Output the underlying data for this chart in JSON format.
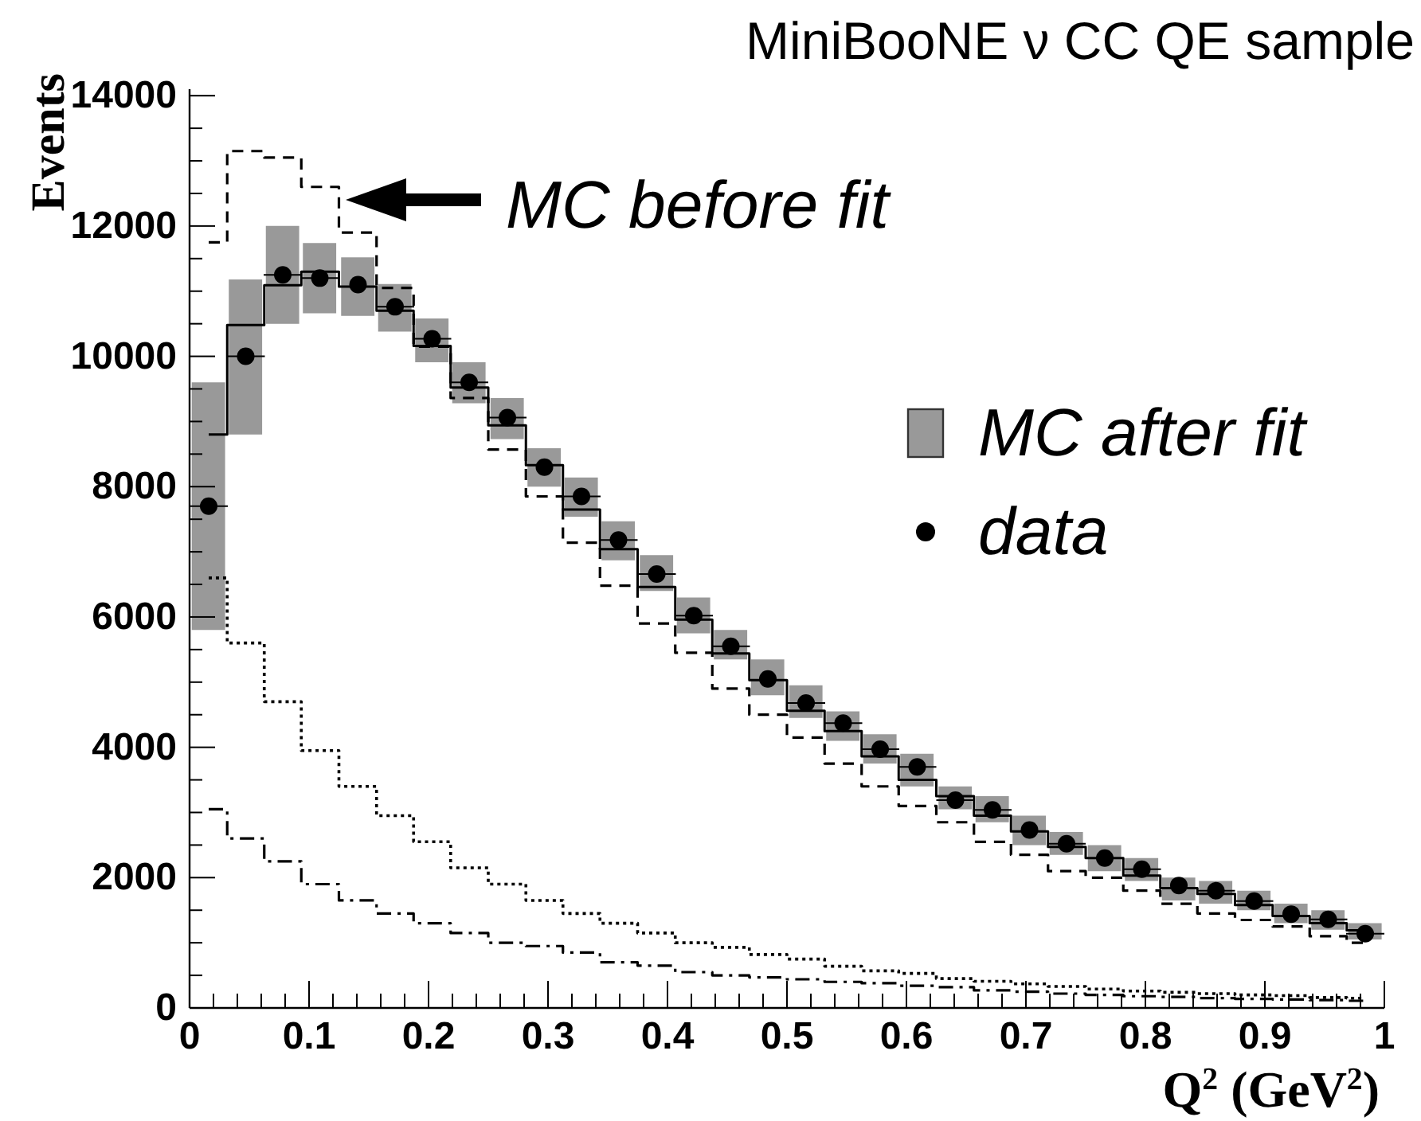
{
  "chart_data": {
    "type": "step",
    "title": "MiniBooNE ν CC QE sample",
    "xlabel": "Q$^{2}$ (GeV$^{2}$)",
    "ylabel": "Events",
    "x": [
      0.016,
      0.047,
      0.078,
      0.109,
      0.141,
      0.172,
      0.203,
      0.234,
      0.266,
      0.297,
      0.328,
      0.359,
      0.391,
      0.422,
      0.453,
      0.484,
      0.516,
      0.547,
      0.578,
      0.609,
      0.641,
      0.672,
      0.703,
      0.734,
      0.766,
      0.797,
      0.828,
      0.859,
      0.891,
      0.922,
      0.953,
      0.984
    ],
    "xlim": [
      0,
      1
    ],
    "xticks": [
      0,
      {
        "value": 0.02,
        "label": null
      },
      {
        "value": 0.04,
        "label": null
      },
      {
        "value": 0.06,
        "label": null
      },
      {
        "value": 0.08,
        "label": null
      },
      0.1,
      {
        "value": 0.12,
        "label": null
      },
      {
        "value": 0.14,
        "label": null
      },
      {
        "value": 0.16,
        "label": null
      },
      {
        "value": 0.18,
        "label": null
      },
      0.2,
      {
        "value": 0.22,
        "label": null
      },
      {
        "value": 0.24,
        "label": null
      },
      {
        "value": 0.26,
        "label": null
      },
      {
        "value": 0.28,
        "label": null
      },
      0.3,
      {
        "value": 0.32,
        "label": null
      },
      {
        "value": 0.34,
        "label": null
      },
      {
        "value": 0.36,
        "label": null
      },
      {
        "value": 0.38,
        "label": null
      },
      0.4,
      {
        "value": 0.42,
        "label": null
      },
      {
        "value": 0.44,
        "label": null
      },
      {
        "value": 0.46,
        "label": null
      },
      {
        "value": 0.48,
        "label": null
      },
      0.5,
      {
        "value": 0.52,
        "label": null
      },
      {
        "value": 0.54,
        "label": null
      },
      {
        "value": 0.56,
        "label": null
      },
      {
        "value": 0.58,
        "label": null
      },
      0.6,
      {
        "value": 0.62,
        "label": null
      },
      {
        "value": 0.64,
        "label": null
      },
      {
        "value": 0.66,
        "label": null
      },
      {
        "value": 0.68,
        "label": null
      },
      0.7,
      {
        "value": 0.72,
        "label": null
      },
      {
        "value": 0.74,
        "label": null
      },
      {
        "value": 0.76,
        "label": null
      },
      {
        "value": 0.78,
        "label": null
      },
      0.8,
      {
        "value": 0.82,
        "label": null
      },
      {
        "value": 0.84,
        "label": null
      },
      {
        "value": 0.86,
        "label": null
      },
      {
        "value": 0.88,
        "label": null
      },
      0.9,
      {
        "value": 0.92,
        "label": null
      },
      {
        "value": 0.94,
        "label": null
      },
      {
        "value": 0.96,
        "label": null
      },
      {
        "value": 0.98,
        "label": null
      },
      1
    ],
    "ylim": [
      0,
      14100
    ],
    "yticks": [
      0,
      {
        "value": 500,
        "label": null
      },
      {
        "value": 1000,
        "label": null
      },
      {
        "value": 1500,
        "label": null
      },
      2000,
      {
        "value": 2500,
        "label": null
      },
      {
        "value": 3000,
        "label": null
      },
      {
        "value": 3500,
        "label": null
      },
      4000,
      {
        "value": 4500,
        "label": null
      },
      {
        "value": 5000,
        "label": null
      },
      {
        "value": 5500,
        "label": null
      },
      6000,
      {
        "value": 6500,
        "label": null
      },
      {
        "value": 7000,
        "label": null
      },
      {
        "value": 7500,
        "label": null
      },
      8000,
      {
        "value": 8500,
        "label": null
      },
      {
        "value": 9000,
        "label": null
      },
      {
        "value": 9500,
        "label": null
      },
      10000,
      {
        "value": 10500,
        "label": null
      },
      {
        "value": 11000,
        "label": null
      },
      {
        "value": 11500,
        "label": null
      },
      12000,
      {
        "value": 12500,
        "label": null
      },
      {
        "value": 13000,
        "label": null
      },
      {
        "value": 13500,
        "label": null
      },
      14000
    ],
    "legend": "right",
    "annotations": [
      {
        "text": "MC before fit",
        "x": 0.13,
        "y": 12400
      }
    ],
    "series": [
      {
        "name": "MC after fit",
        "type": "bar",
        "color": "#999999",
        "base": [
          5800,
          8800,
          10500,
          10660,
          10620,
          10380,
          9910,
          9280,
          8730,
          8000,
          7540,
          6870,
          6400,
          5750,
          5350,
          4800,
          4450,
          4100,
          3750,
          3400,
          3050,
          2850,
          2500,
          2350,
          2100,
          1950,
          1650,
          1600,
          1500,
          1300,
          1200,
          1050
        ],
        "values": [
          3800,
          2380,
          1500,
          1080,
          900,
          730,
          670,
          630,
          630,
          590,
          600,
          600,
          550,
          550,
          450,
          550,
          500,
          450,
          450,
          500,
          350,
          400,
          450,
          350,
          400,
          350,
          350,
          350,
          300,
          300,
          300,
          250
        ]
      },
      {
        "color": "#000000",
        "line_style": "solid",
        "values": [
          8800,
          10480,
          11090,
          11300,
          11070,
          10700,
          10160,
          9520,
          8940,
          8330,
          7650,
          7040,
          6460,
          5960,
          5440,
          5030,
          4560,
          4250,
          3860,
          3500,
          3250,
          2950,
          2710,
          2470,
          2300,
          2030,
          1840,
          1750,
          1580,
          1410,
          1300,
          1190
        ]
      },
      {
        "color": "#000000",
        "line_style": "dashed",
        "values": [
          11750,
          13150,
          13050,
          12600,
          11900,
          11050,
          10150,
          9360,
          8570,
          7850,
          7140,
          6480,
          5900,
          5450,
          4900,
          4500,
          4150,
          3750,
          3400,
          3100,
          2850,
          2550,
          2350,
          2100,
          2000,
          1800,
          1600,
          1450,
          1350,
          1250,
          1100,
          1000
        ]
      },
      {
        "color": "#000000",
        "line_style": "dotted",
        "values": [
          6600,
          5600,
          4700,
          3950,
          3400,
          2950,
          2550,
          2150,
          1900,
          1650,
          1450,
          1300,
          1150,
          1000,
          930,
          820,
          750,
          640,
          570,
          530,
          450,
          410,
          370,
          330,
          290,
          260,
          240,
          220,
          200,
          190,
          160,
          150
        ]
      },
      {
        "color": "#000000",
        "line_style": "dashdot",
        "values": [
          3050,
          2600,
          2250,
          1900,
          1650,
          1450,
          1300,
          1150,
          1000,
          950,
          850,
          700,
          650,
          550,
          500,
          470,
          440,
          400,
          380,
          340,
          320,
          270,
          250,
          220,
          200,
          180,
          170,
          150,
          140,
          130,
          120,
          110
        ]
      },
      {
        "name": "data",
        "type": "scatter",
        "color": "#000000",
        "marker": "circle",
        "values": [
          7700,
          10000,
          11250,
          11200,
          11100,
          10760,
          10270,
          9600,
          9060,
          8300,
          7850,
          7180,
          6660,
          6020,
          5550,
          5050,
          4680,
          4370,
          3970,
          3700,
          3190,
          3040,
          2730,
          2520,
          2300,
          2130,
          1880,
          1800,
          1640,
          1440,
          1360,
          1140
        ],
        "xerrors": [
          0.016,
          0.016,
          0.016,
          0.016,
          null,
          0.016,
          0.016,
          0.016,
          0.016,
          null,
          0.016,
          0.016,
          0.016,
          0.016,
          0.016,
          null,
          0.016,
          0.016,
          0.016,
          0.016,
          0.016,
          0.016,
          null,
          0.016,
          null,
          0.016,
          null,
          0.016,
          0.016,
          null,
          0.016,
          0.016
        ]
      }
    ]
  }
}
